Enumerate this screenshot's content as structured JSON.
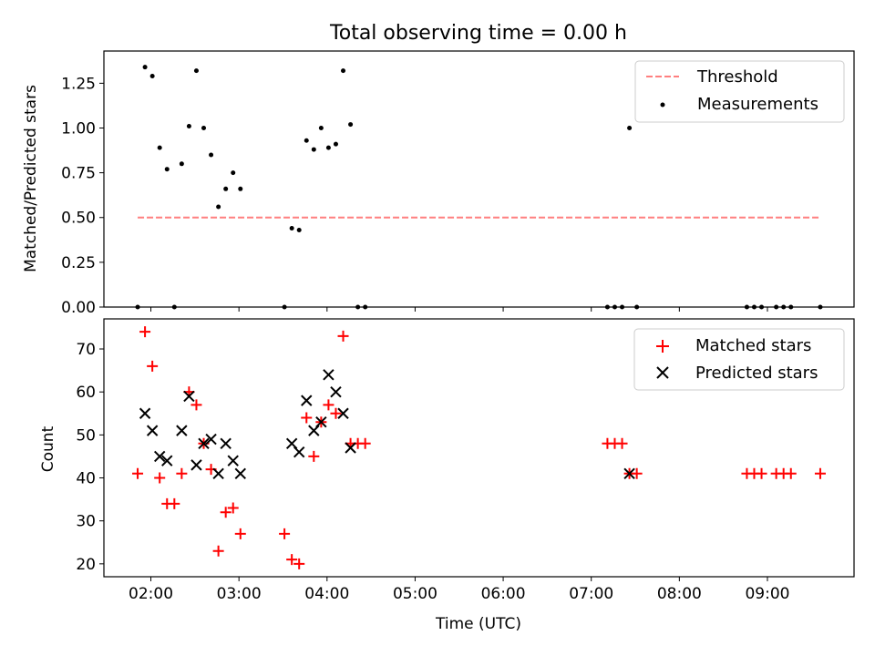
{
  "chart_data": [
    {
      "type": "scatter",
      "title": "Total observing time = 0.00 h",
      "xlabel": "",
      "ylabel": "Matched/Predicted stars",
      "xlim": [
        "01:28",
        "09:59"
      ],
      "ylim": [
        0,
        1.43
      ],
      "x_tick_labels_visible": false,
      "xticks": [
        "02:00",
        "03:00",
        "04:00",
        "05:00",
        "06:00",
        "07:00",
        "08:00",
        "09:00"
      ],
      "yticks": [
        "0.00",
        "0.25",
        "0.50",
        "0.75",
        "1.00",
        "1.25"
      ],
      "legend": {
        "position": "top-right",
        "entries": [
          {
            "label": "Threshold",
            "marker": "dashed-line",
            "color": "#ff7f7f"
          },
          {
            "label": "Measurements",
            "marker": "dot",
            "color": "#000000"
          }
        ]
      },
      "series": [
        {
          "name": "Threshold",
          "kind": "line",
          "color": "#ff7f7f",
          "x": [
            "01:51",
            "09:36"
          ],
          "y": [
            0.5,
            0.5
          ]
        },
        {
          "name": "Measurements",
          "kind": "scatter",
          "marker": "dot",
          "color": "#000000",
          "points": [
            [
              "01:51",
              0.0
            ],
            [
              "01:56",
              1.34
            ],
            [
              "02:01",
              1.29
            ],
            [
              "02:06",
              0.89
            ],
            [
              "02:11",
              0.77
            ],
            [
              "02:16",
              0.0
            ],
            [
              "02:21",
              0.8
            ],
            [
              "02:26",
              1.01
            ],
            [
              "02:31",
              1.32
            ],
            [
              "02:36",
              1.0
            ],
            [
              "02:41",
              0.85
            ],
            [
              "02:46",
              0.56
            ],
            [
              "02:51",
              0.66
            ],
            [
              "02:56",
              0.75
            ],
            [
              "03:01",
              0.66
            ],
            [
              "03:31",
              0.0
            ],
            [
              "03:36",
              0.44
            ],
            [
              "03:41",
              0.43
            ],
            [
              "03:46",
              0.93
            ],
            [
              "03:51",
              0.88
            ],
            [
              "03:56",
              1.0
            ],
            [
              "04:01",
              0.89
            ],
            [
              "04:06",
              0.91
            ],
            [
              "04:11",
              1.32
            ],
            [
              "04:16",
              1.02
            ],
            [
              "04:21",
              0.0
            ],
            [
              "04:26",
              0.0
            ],
            [
              "07:11",
              0.0
            ],
            [
              "07:16",
              0.0
            ],
            [
              "07:21",
              0.0
            ],
            [
              "07:26",
              1.0
            ],
            [
              "07:31",
              0.0
            ],
            [
              "08:46",
              0.0
            ],
            [
              "08:51",
              0.0
            ],
            [
              "08:56",
              0.0
            ],
            [
              "09:06",
              0.0
            ],
            [
              "09:11",
              0.0
            ],
            [
              "09:16",
              0.0
            ],
            [
              "09:36",
              0.0
            ]
          ]
        }
      ]
    },
    {
      "type": "scatter",
      "title": "",
      "xlabel": "Time (UTC)",
      "ylabel": "Count",
      "xlim": [
        "01:28",
        "09:59"
      ],
      "ylim": [
        17,
        77
      ],
      "xticks": [
        "02:00",
        "03:00",
        "04:00",
        "05:00",
        "06:00",
        "07:00",
        "08:00",
        "09:00"
      ],
      "yticks": [
        "20",
        "30",
        "40",
        "50",
        "60",
        "70"
      ],
      "legend": {
        "position": "top-right",
        "entries": [
          {
            "label": "Matched stars",
            "marker": "plus",
            "color": "#ff0000"
          },
          {
            "label": "Predicted stars",
            "marker": "x",
            "color": "#000000"
          }
        ]
      },
      "series": [
        {
          "name": "Matched stars",
          "kind": "scatter",
          "marker": "plus",
          "color": "#ff0000",
          "points": [
            [
              "01:51",
              41
            ],
            [
              "01:56",
              74
            ],
            [
              "02:01",
              66
            ],
            [
              "02:06",
              40
            ],
            [
              "02:11",
              34
            ],
            [
              "02:16",
              34
            ],
            [
              "02:21",
              41
            ],
            [
              "02:26",
              60
            ],
            [
              "02:31",
              57
            ],
            [
              "02:36",
              48
            ],
            [
              "02:41",
              42
            ],
            [
              "02:46",
              23
            ],
            [
              "02:51",
              32
            ],
            [
              "02:56",
              33
            ],
            [
              "03:01",
              27
            ],
            [
              "03:31",
              27
            ],
            [
              "03:36",
              21
            ],
            [
              "03:41",
              20
            ],
            [
              "03:46",
              54
            ],
            [
              "03:51",
              45
            ],
            [
              "03:56",
              53
            ],
            [
              "04:01",
              57
            ],
            [
              "04:06",
              55
            ],
            [
              "04:11",
              73
            ],
            [
              "04:16",
              48
            ],
            [
              "04:21",
              48
            ],
            [
              "04:26",
              48
            ],
            [
              "07:11",
              48
            ],
            [
              "07:16",
              48
            ],
            [
              "07:21",
              48
            ],
            [
              "07:26",
              41
            ],
            [
              "07:31",
              41
            ],
            [
              "08:46",
              41
            ],
            [
              "08:51",
              41
            ],
            [
              "08:56",
              41
            ],
            [
              "09:06",
              41
            ],
            [
              "09:11",
              41
            ],
            [
              "09:16",
              41
            ],
            [
              "09:36",
              41
            ]
          ]
        },
        {
          "name": "Predicted stars",
          "kind": "scatter",
          "marker": "x",
          "color": "#000000",
          "points": [
            [
              "01:56",
              55
            ],
            [
              "02:01",
              51
            ],
            [
              "02:06",
              45
            ],
            [
              "02:11",
              44
            ],
            [
              "02:21",
              51
            ],
            [
              "02:26",
              59
            ],
            [
              "02:31",
              43
            ],
            [
              "02:36",
              48
            ],
            [
              "02:41",
              49
            ],
            [
              "02:46",
              41
            ],
            [
              "02:51",
              48
            ],
            [
              "02:56",
              44
            ],
            [
              "03:01",
              41
            ],
            [
              "03:36",
              48
            ],
            [
              "03:41",
              46
            ],
            [
              "03:46",
              58
            ],
            [
              "03:51",
              51
            ],
            [
              "03:56",
              53
            ],
            [
              "04:01",
              64
            ],
            [
              "04:06",
              60
            ],
            [
              "04:11",
              55
            ],
            [
              "04:16",
              47
            ],
            [
              "07:26",
              41
            ]
          ]
        }
      ]
    }
  ]
}
